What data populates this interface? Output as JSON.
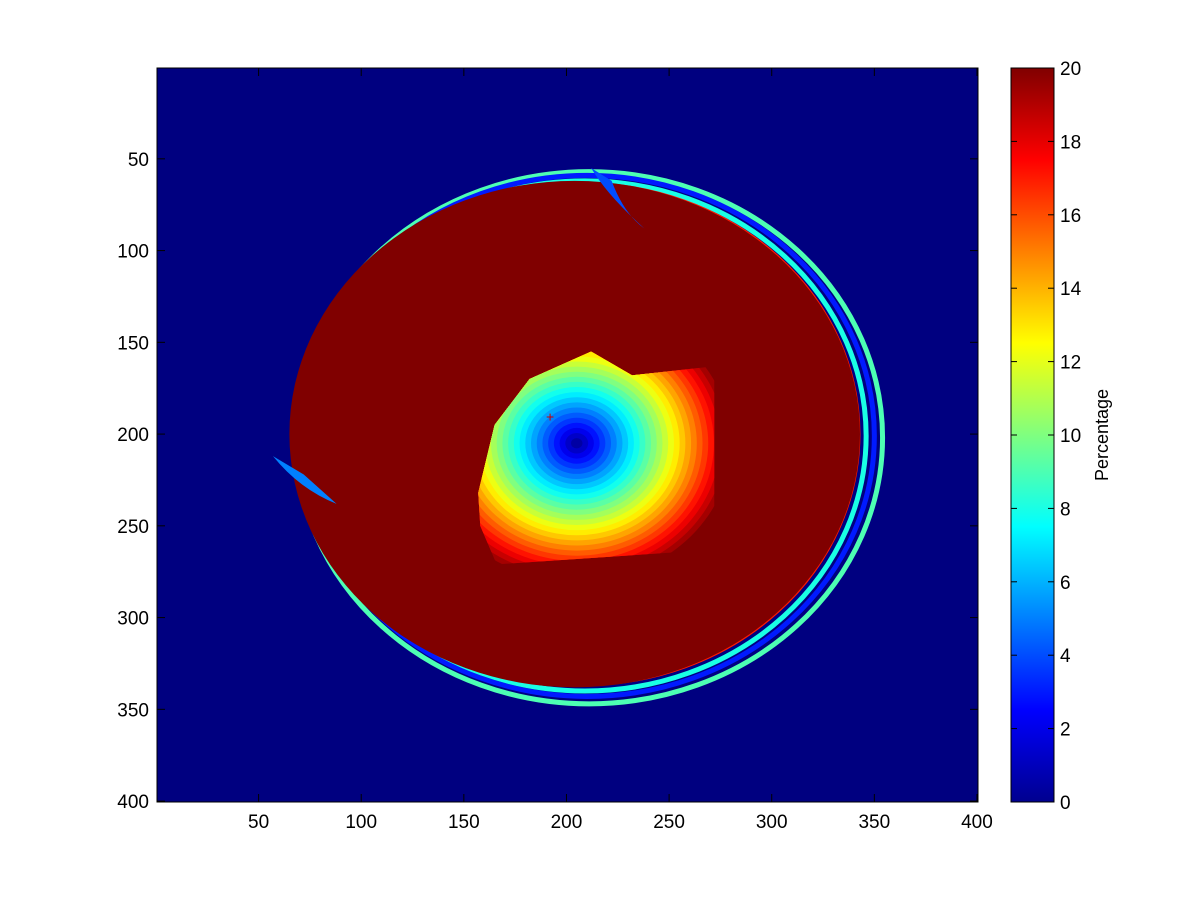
{
  "chart_data": {
    "type": "heatmap",
    "title": "",
    "xlabel": "",
    "ylabel": "",
    "xlim": [
      1,
      400
    ],
    "ylim": [
      1,
      400
    ],
    "y_reversed": true,
    "x_ticks": [
      50,
      100,
      150,
      200,
      250,
      300,
      350,
      400
    ],
    "y_ticks": [
      50,
      100,
      150,
      200,
      250,
      300,
      350,
      400
    ],
    "colormap": "jet",
    "colorbar": {
      "label": "Percentage",
      "range": [
        0,
        20
      ],
      "ticks": [
        0,
        2,
        4,
        6,
        8,
        10,
        12,
        14,
        16,
        18,
        20
      ]
    },
    "background_value": 0,
    "outer_disk": {
      "center": [
        204,
        200
      ],
      "radius_x": 139,
      "radius_y": 138,
      "value": 20
    },
    "concentric_rings": [
      {
        "center": [
          208,
          200
        ],
        "radius_x": 134,
        "radius_y": 136,
        "value": 17
      },
      {
        "center": [
          209,
          201
        ],
        "radius_x": 137,
        "radius_y": 139,
        "value": 8
      },
      {
        "center": [
          210,
          201
        ],
        "radius_x": 140,
        "radius_y": 142,
        "value": 3
      },
      {
        "center": [
          211,
          202
        ],
        "radius_x": 143,
        "radius_y": 145,
        "value": 9
      }
    ],
    "center_gradient": {
      "center": [
        205,
        205
      ],
      "radius_at_zero": 0,
      "radius_at_20": 78,
      "min_value": 0,
      "max_value": 20
    },
    "marker": {
      "x": 192,
      "y": 191,
      "symbol": "+"
    }
  }
}
